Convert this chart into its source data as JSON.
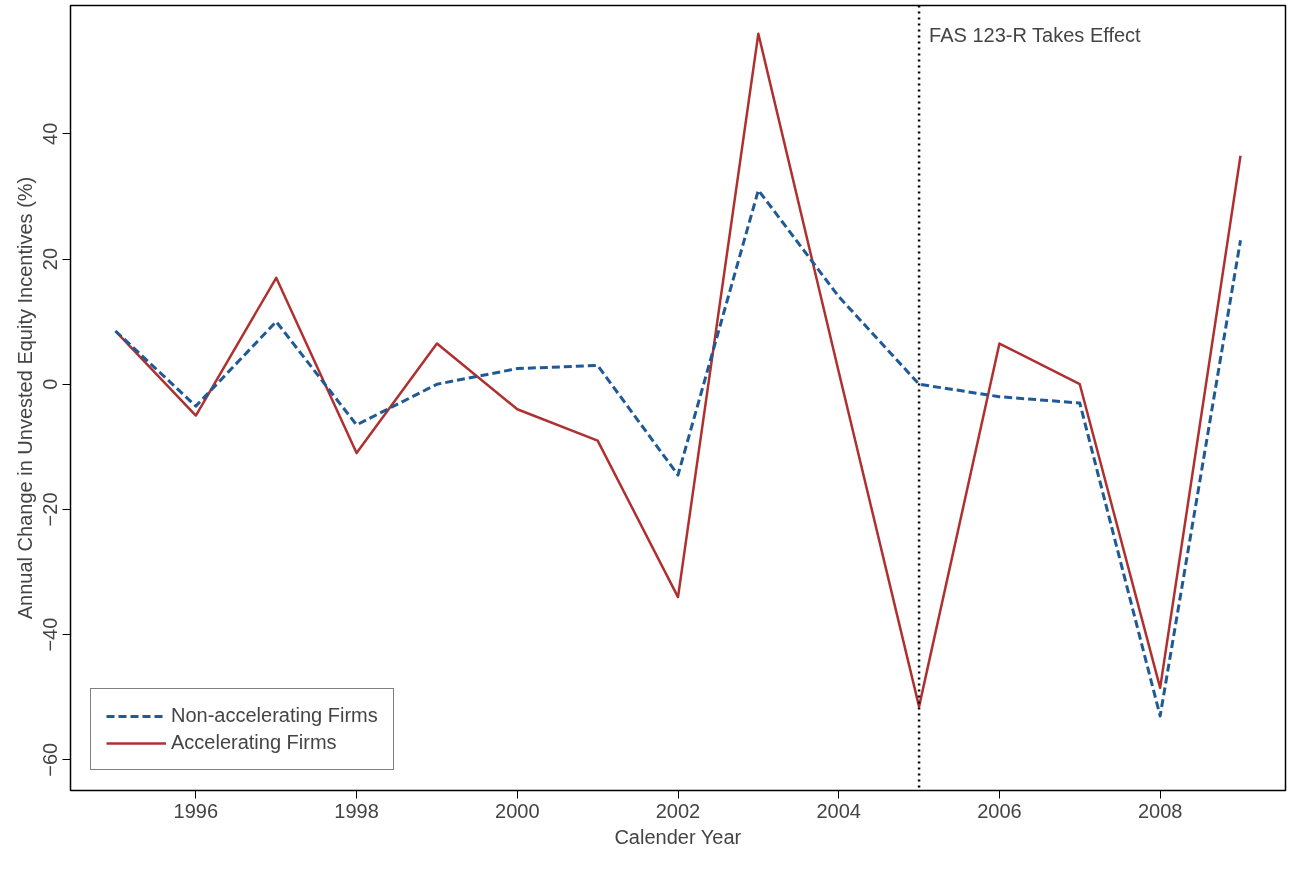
{
  "chart_data": {
    "type": "line",
    "xlabel": "Calender Year",
    "ylabel": "Annual Change in Unvested Equity Incentives (%)",
    "x": [
      1995,
      1996,
      1997,
      1998,
      1999,
      2000,
      2001,
      2002,
      2003,
      2004,
      2005,
      2006,
      2007,
      2008,
      2009
    ],
    "series": [
      {
        "name": "Non-accelerating Firms",
        "color": "#1f5a96",
        "line_style": "dashed",
        "values": [
          8.5,
          -3.5,
          10,
          -6.5,
          0,
          2.5,
          3,
          -14.5,
          31,
          14,
          0,
          -2,
          -3,
          -53,
          23
        ]
      },
      {
        "name": "Accelerating Firms",
        "color": "#b03030",
        "line_style": "solid",
        "values": [
          8.5,
          -5,
          17,
          -11,
          6.5,
          -4,
          -9,
          -34,
          56,
          2,
          -51.5,
          6.5,
          0,
          -48.5,
          36.5
        ]
      }
    ],
    "xlim": [
      1994.44,
      2009.56
    ],
    "ylim": [
      -64.9,
      60.5
    ],
    "xticks": [
      1996,
      1998,
      2000,
      2002,
      2004,
      2006,
      2008
    ],
    "yticks": [
      -60,
      -40,
      -20,
      0,
      20,
      40
    ],
    "ref_lines": [
      {
        "axis": "x",
        "value": 2005,
        "label": "FAS 123-R Takes Effect",
        "color": "#000000",
        "line_style": "dotted"
      }
    ],
    "legend": "bottom left",
    "grid": false,
    "marker": "none"
  }
}
